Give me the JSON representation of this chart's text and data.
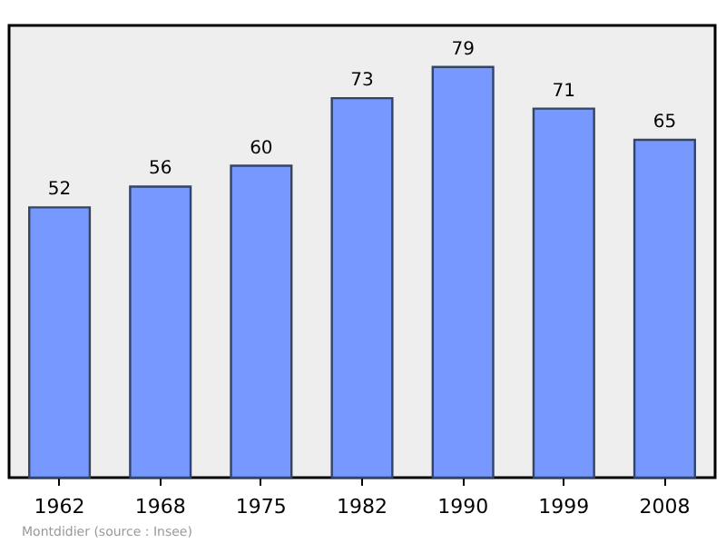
{
  "chart_data": {
    "type": "bar",
    "categories": [
      "1962",
      "1968",
      "1975",
      "1982",
      "1990",
      "1999",
      "2008"
    ],
    "values": [
      52,
      56,
      60,
      73,
      79,
      71,
      65
    ],
    "color": "#7799ff",
    "ylim": [
      0,
      87
    ],
    "data_labels": true,
    "annotations": [
      "Montdidier    (source : Insee)"
    ]
  }
}
